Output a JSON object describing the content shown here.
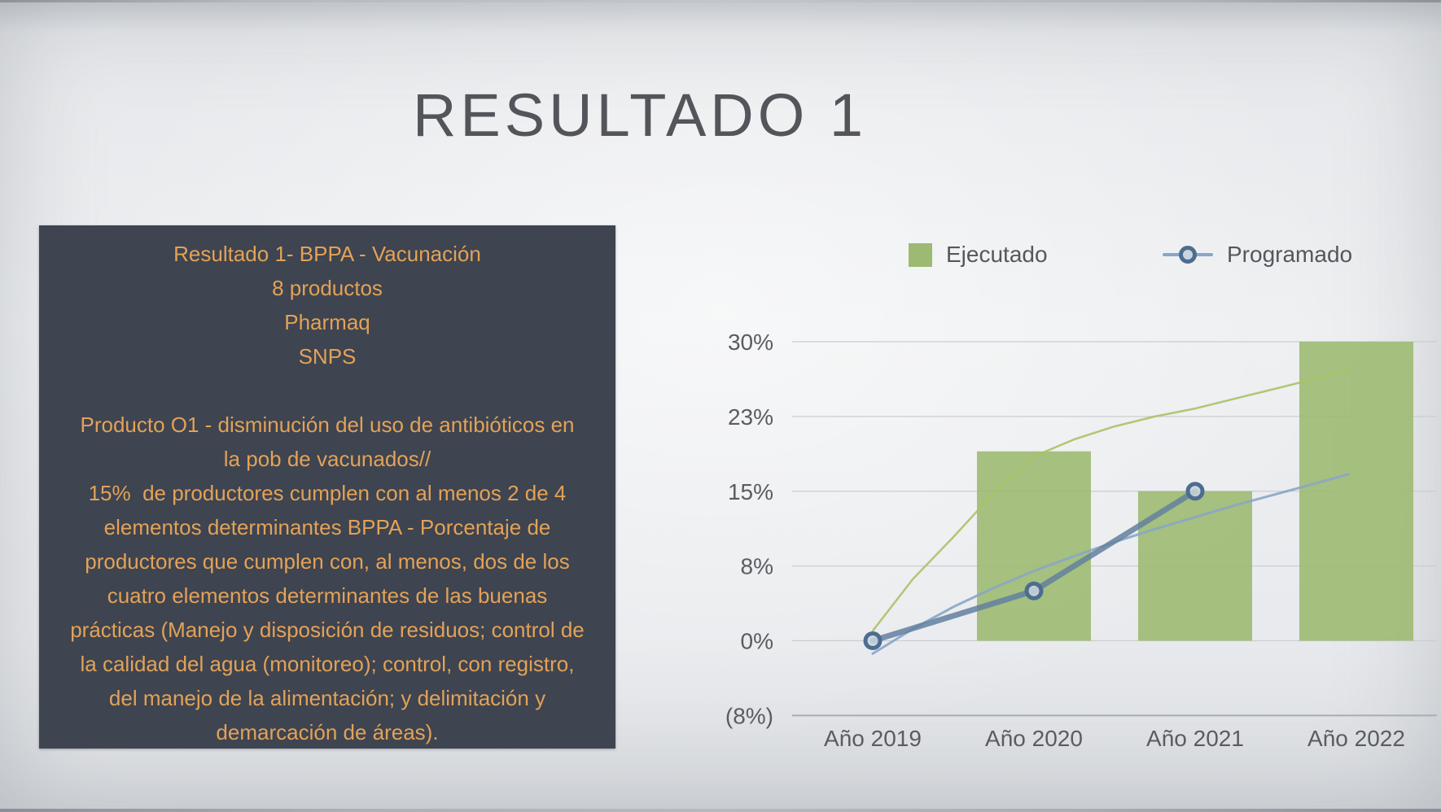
{
  "slide": {
    "title": "RESULTADO 1"
  },
  "info_box": {
    "bg_color": "#3e4450",
    "text_color": "#e3a257",
    "lines": [
      "Resultado 1- BPPA - Vacunación",
      "8 productos",
      "Pharmaq",
      "SNPS",
      "",
      "Producto O1 - disminución del uso de antibióticos en",
      "la pob de vacunados//",
      "15%  de productores cumplen con al menos 2 de 4",
      "elementos determinantes BPPA - Porcentaje de",
      "productores que cumplen con, al menos, dos de los",
      "cuatro elementos determinantes de las buenas",
      "prácticas (Manejo y disposición de residuos; control de",
      "la calidad del agua (monitoreo); control, con registro,",
      "del manejo de la alimentación; y delimitación y",
      "demarcación de áreas)."
    ]
  },
  "chart_data": {
    "type": "combo",
    "categories": [
      "Año 2019",
      "Año 2020",
      "Año 2021",
      "Año 2022"
    ],
    "series": [
      {
        "name": "Ejecutado",
        "type": "bar",
        "color": "#9dba72",
        "values": [
          null,
          19,
          15,
          30
        ]
      },
      {
        "name": "Programado",
        "type": "line",
        "color": "#63809f",
        "marker_color": "#4d6d90",
        "values": [
          0,
          5,
          15,
          null
        ]
      }
    ],
    "trendlines": [
      {
        "series": "Ejecutado",
        "color": "#a9c266",
        "width": 2.5,
        "t": [
          0,
          0.25,
          0.5,
          0.75,
          1,
          1.25,
          1.5,
          1.75,
          2,
          2.25,
          2.5,
          2.75,
          2.95
        ],
        "v": [
          1.0,
          6.2,
          10.4,
          14.8,
          18.5,
          20.2,
          21.5,
          22.5,
          23.3,
          24.3,
          25.3,
          26.3,
          27.2
        ]
      },
      {
        "series": "Programado",
        "color": "#8aa6c6",
        "width": 3,
        "t": [
          0,
          0.25,
          0.5,
          0.75,
          1,
          1.25,
          1.5,
          1.75,
          2,
          2.25,
          2.5,
          2.75,
          2.95
        ],
        "v": [
          -1.3,
          1.2,
          3.4,
          5.3,
          7.0,
          8.5,
          9.9,
          11.2,
          12.4,
          13.6,
          14.7,
          15.8,
          16.7
        ]
      }
    ],
    "y_axis": {
      "range": [
        -7.5,
        30
      ],
      "ticks": [
        {
          "label": "30%",
          "value": 30
        },
        {
          "label": "23%",
          "value": 22.5
        },
        {
          "label": "15%",
          "value": 15
        },
        {
          "label": "8%",
          "value": 7.5
        },
        {
          "label": "0%",
          "value": 0
        },
        {
          "label": "(8%)",
          "value": -7.5,
          "axis": true
        }
      ]
    },
    "legend": [
      {
        "label": "Ejecutado",
        "swatch": "square",
        "color": "#9dba72"
      },
      {
        "label": "Programado",
        "swatch": "ring-line",
        "color": "#4d6d90"
      }
    ],
    "grid": true,
    "legend_position": "top-right"
  }
}
